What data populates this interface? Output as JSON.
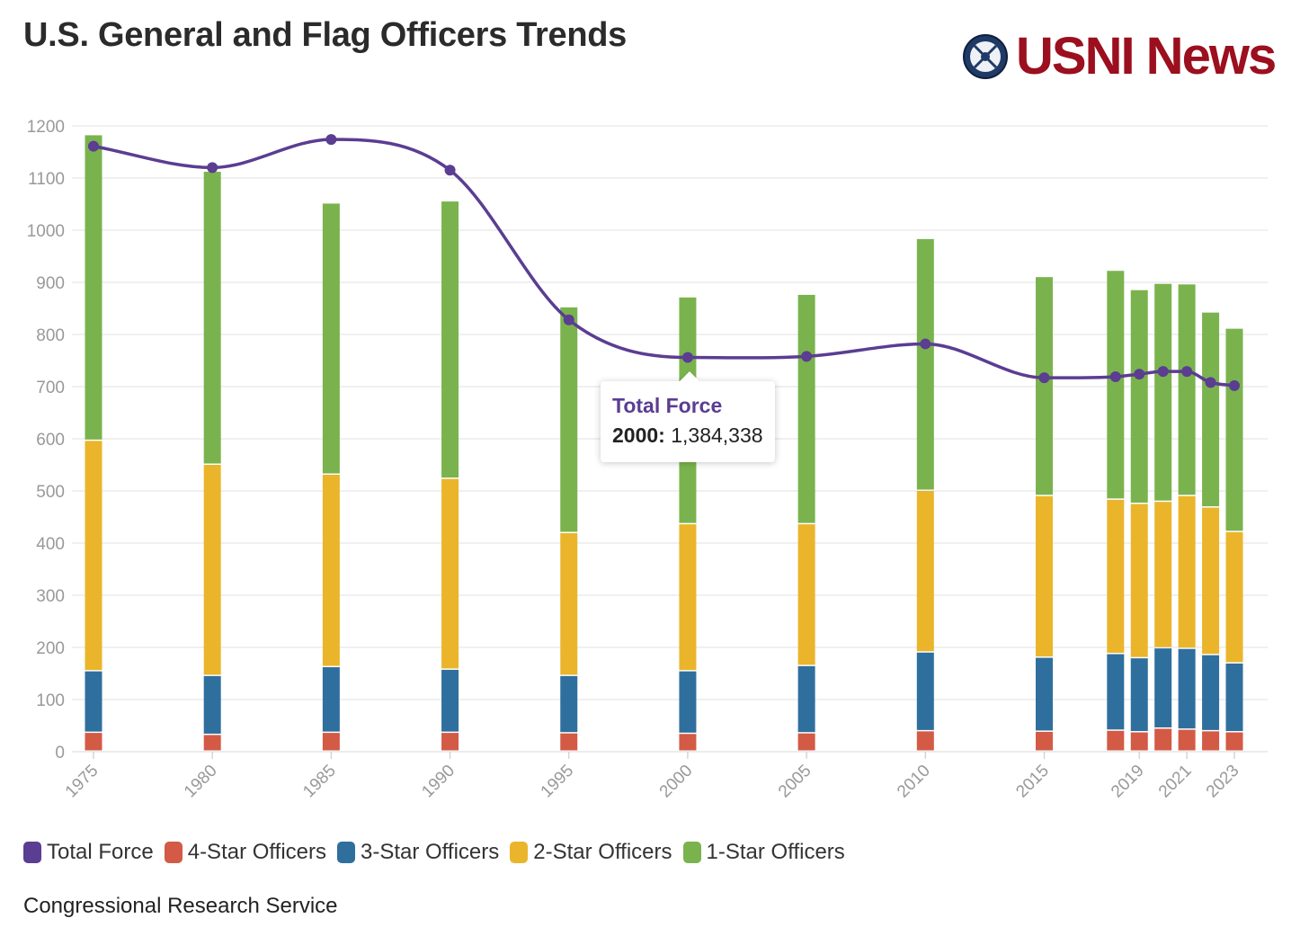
{
  "header": {
    "title": "U.S. General and Flag Officers Trends",
    "logo_text": "USNI News"
  },
  "colors": {
    "total_force": "#5b3d92",
    "four_star": "#d35a45",
    "three_star": "#2f6f9e",
    "two_star": "#eab52b",
    "one_star": "#7ab34e",
    "grid": "#e6e6e6",
    "axis_text": "#999999"
  },
  "legend": {
    "total_force": "Total Force",
    "four_star": "4-Star Officers",
    "three_star": "3-Star Officers",
    "two_star": "2-Star Officers",
    "one_star": "1-Star Officers"
  },
  "tooltip": {
    "title": "Total Force",
    "year": "2000:",
    "value": "1,384,338"
  },
  "source": "Congressional Research Service",
  "chart_data": {
    "type": "bar",
    "stacked": true,
    "title": "U.S. General and Flag Officers Trends",
    "ylim": [
      0,
      1200
    ],
    "yticks": [
      0,
      100,
      200,
      300,
      400,
      500,
      600,
      700,
      800,
      900,
      1000,
      1100,
      1200
    ],
    "xticks": [
      "1975",
      "1980",
      "1985",
      "1990",
      "1995",
      "2000",
      "2005",
      "2010",
      "2015",
      "2019",
      "2021",
      "2023"
    ],
    "categories": [
      "1975",
      "1980",
      "1985",
      "1990",
      "1995",
      "2000",
      "2005",
      "2010",
      "2015",
      "2018",
      "2019",
      "2020",
      "2021",
      "2022",
      "2023"
    ],
    "x": [
      1975,
      1980,
      1985,
      1990,
      1995,
      2000,
      2005,
      2010,
      2015,
      2018,
      2019,
      2020,
      2021,
      2022,
      2023
    ],
    "series": [
      {
        "name": "4-Star Officers",
        "values": [
          36,
          32,
          36,
          36,
          35,
          34,
          35,
          39,
          38,
          40,
          37,
          44,
          42,
          39,
          37
        ]
      },
      {
        "name": "3-Star Officers",
        "values": [
          118,
          113,
          126,
          121,
          110,
          120,
          129,
          151,
          142,
          147,
          142,
          154,
          155,
          146,
          132
        ]
      },
      {
        "name": "2-Star Officers",
        "values": [
          442,
          405,
          369,
          366,
          274,
          282,
          272,
          310,
          310,
          296,
          296,
          281,
          293,
          283,
          252
        ]
      },
      {
        "name": "1-Star Officers",
        "values": [
          586,
          562,
          520,
          532,
          433,
          435,
          440,
          483,
          420,
          439,
          410,
          418,
          406,
          374,
          390
        ]
      }
    ],
    "line": {
      "name": "Total Force",
      "values": [
        1161,
        1120,
        1174,
        1115,
        828,
        756,
        758,
        782,
        717,
        719,
        724,
        729,
        729,
        708,
        702
      ],
      "note": "plotted on the left axis scale; tooltip shows actual total force"
    },
    "legend_position": "bottom-left",
    "grid": true
  }
}
